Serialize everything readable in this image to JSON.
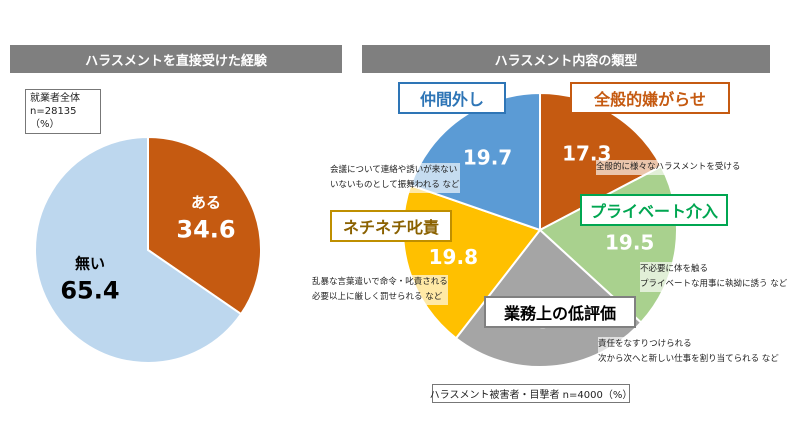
{
  "left_panel": {
    "header": "ハラスメントを直接受けた経験",
    "note_lines": [
      "就業者全体",
      "n=28135",
      "（%）"
    ]
  },
  "right_panel": {
    "header": "ハラスメント内容の類型",
    "note": "ハラスメント被害者・目撃者 n=4000（%）"
  },
  "chart_data": [
    {
      "type": "pie",
      "unit": "%",
      "slices": [
        {
          "label": "ある",
          "value": 34.6,
          "color": "#c55a11"
        },
        {
          "label": "無い",
          "value": 65.4,
          "color": "#bdd7ee"
        }
      ]
    },
    {
      "type": "pie",
      "unit": "%",
      "slices": [
        {
          "label": "全般的嫌がらせ",
          "value": 17.3,
          "color": "#c55a11",
          "desc": [
            "全般的に様々なハラスメントを受ける"
          ]
        },
        {
          "label": "プライベート介入",
          "value": 19.5,
          "color": "#a9d18e",
          "desc": [
            "不必要に体を触る",
            "プライベートな用事に執拗に誘う など"
          ]
        },
        {
          "label": "業務上の低評価",
          "value": 23.7,
          "color": "#a5a5a5",
          "desc": [
            "責任をなすりつけられる",
            "次から次へと新しい仕事を割り当てられる など"
          ]
        },
        {
          "label": "ネチネチ叱責",
          "value": 19.8,
          "color": "#ffc000",
          "desc": [
            "乱暴な言葉遣いで命令・叱責される",
            "必要以上に厳しく罰せられる など"
          ]
        },
        {
          "label": "仲間外し",
          "value": 19.7,
          "color": "#5b9bd5",
          "desc": [
            "会議について連絡や誘いが来ない",
            "いないものとして振舞われる など"
          ]
        }
      ]
    }
  ]
}
